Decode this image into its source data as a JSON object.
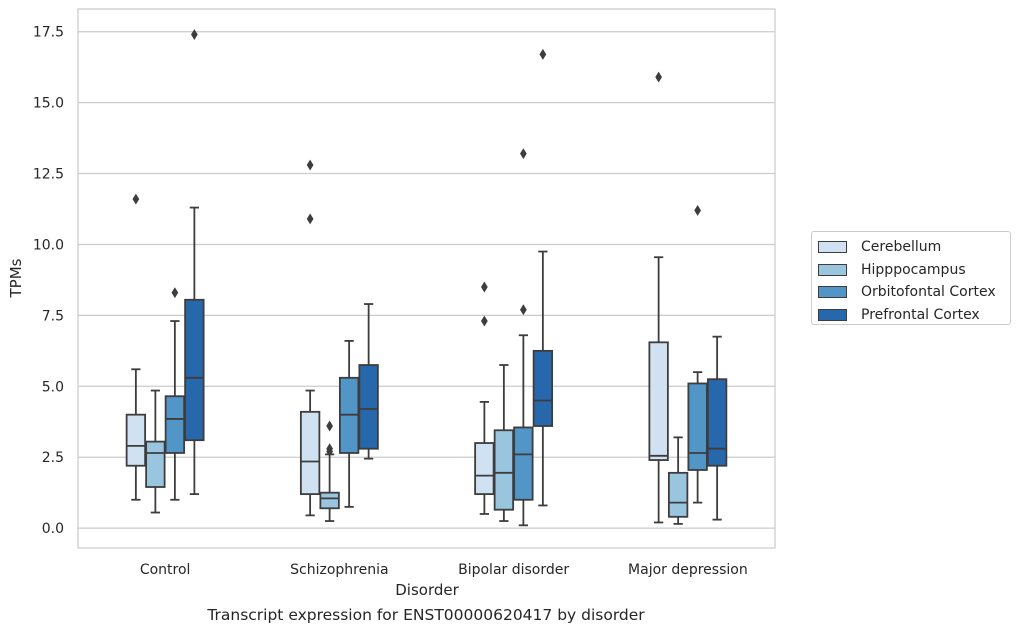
{
  "chart_data": {
    "type": "box",
    "xlabel": "Disorder",
    "ylabel": "TPMs",
    "caption": "Transcript expression for ENST00000620417 by disorder",
    "ylim": [
      -0.7,
      18.3
    ],
    "yticks": [
      "0.0",
      "2.5",
      "5.0",
      "7.5",
      "10.0",
      "12.5",
      "15.0",
      "17.5"
    ],
    "ytick_values": [
      0,
      2.5,
      5,
      7.5,
      10,
      12.5,
      15,
      17.5
    ],
    "grid": "horizontal",
    "legend_position": "outside-right",
    "categories": [
      "Control",
      "Schizophrenia",
      "Bipolar disorder",
      "Major depression"
    ],
    "series": [
      {
        "name": "Cerebellum",
        "color": "#d0e1f2",
        "boxes": [
          {
            "whislo": 1.0,
            "q1": 2.2,
            "med": 2.9,
            "q3": 4.0,
            "whishi": 5.6,
            "fliers": [
              11.6
            ]
          },
          {
            "whislo": 0.45,
            "q1": 1.2,
            "med": 2.35,
            "q3": 4.1,
            "whishi": 4.85,
            "fliers": [
              10.9,
              12.8
            ]
          },
          {
            "whislo": 0.5,
            "q1": 1.2,
            "med": 1.85,
            "q3": 3.0,
            "whishi": 4.45,
            "fliers": [
              7.3,
              8.5
            ]
          },
          {
            "whislo": 0.2,
            "q1": 2.4,
            "med": 2.55,
            "q3": 6.55,
            "whishi": 9.55,
            "fliers": [
              15.9
            ]
          }
        ]
      },
      {
        "name": "Hipppocampus",
        "color": "#9ac5df",
        "boxes": [
          {
            "whislo": 0.55,
            "q1": 1.45,
            "med": 2.65,
            "q3": 3.05,
            "whishi": 4.85,
            "fliers": []
          },
          {
            "whislo": 0.25,
            "q1": 0.7,
            "med": 1.05,
            "q3": 1.25,
            "whishi": 2.6,
            "fliers": [
              2.7,
              2.8,
              3.6
            ]
          },
          {
            "whislo": 0.25,
            "q1": 0.65,
            "med": 1.95,
            "q3": 3.45,
            "whishi": 5.75,
            "fliers": []
          },
          {
            "whislo": 0.15,
            "q1": 0.4,
            "med": 0.9,
            "q3": 1.95,
            "whishi": 3.2,
            "fliers": []
          }
        ]
      },
      {
        "name": "Orbitofontal Cortex",
        "color": "#5295c7",
        "boxes": [
          {
            "whislo": 1.0,
            "q1": 2.65,
            "med": 3.85,
            "q3": 4.65,
            "whishi": 7.3,
            "fliers": [
              8.3
            ]
          },
          {
            "whislo": 0.75,
            "q1": 2.65,
            "med": 4.0,
            "q3": 5.3,
            "whishi": 6.6,
            "fliers": []
          },
          {
            "whislo": 0.1,
            "q1": 1.0,
            "med": 2.6,
            "q3": 3.55,
            "whishi": 6.8,
            "fliers": [
              7.7,
              13.2
            ]
          },
          {
            "whislo": 0.9,
            "q1": 2.05,
            "med": 2.65,
            "q3": 5.1,
            "whishi": 5.5,
            "fliers": [
              11.2
            ]
          }
        ]
      },
      {
        "name": "Prefrontal Cortex",
        "color": "#2767ab",
        "boxes": [
          {
            "whislo": 1.2,
            "q1": 3.1,
            "med": 5.3,
            "q3": 8.05,
            "whishi": 11.3,
            "fliers": [
              17.4
            ]
          },
          {
            "whislo": 2.45,
            "q1": 2.8,
            "med": 4.2,
            "q3": 5.75,
            "whishi": 7.9,
            "fliers": []
          },
          {
            "whislo": 0.8,
            "q1": 3.6,
            "med": 4.5,
            "q3": 6.25,
            "whishi": 9.75,
            "fliers": [
              16.7
            ]
          },
          {
            "whislo": 0.3,
            "q1": 2.2,
            "med": 2.8,
            "q3": 5.25,
            "whishi": 6.75,
            "fliers": []
          }
        ]
      }
    ]
  }
}
